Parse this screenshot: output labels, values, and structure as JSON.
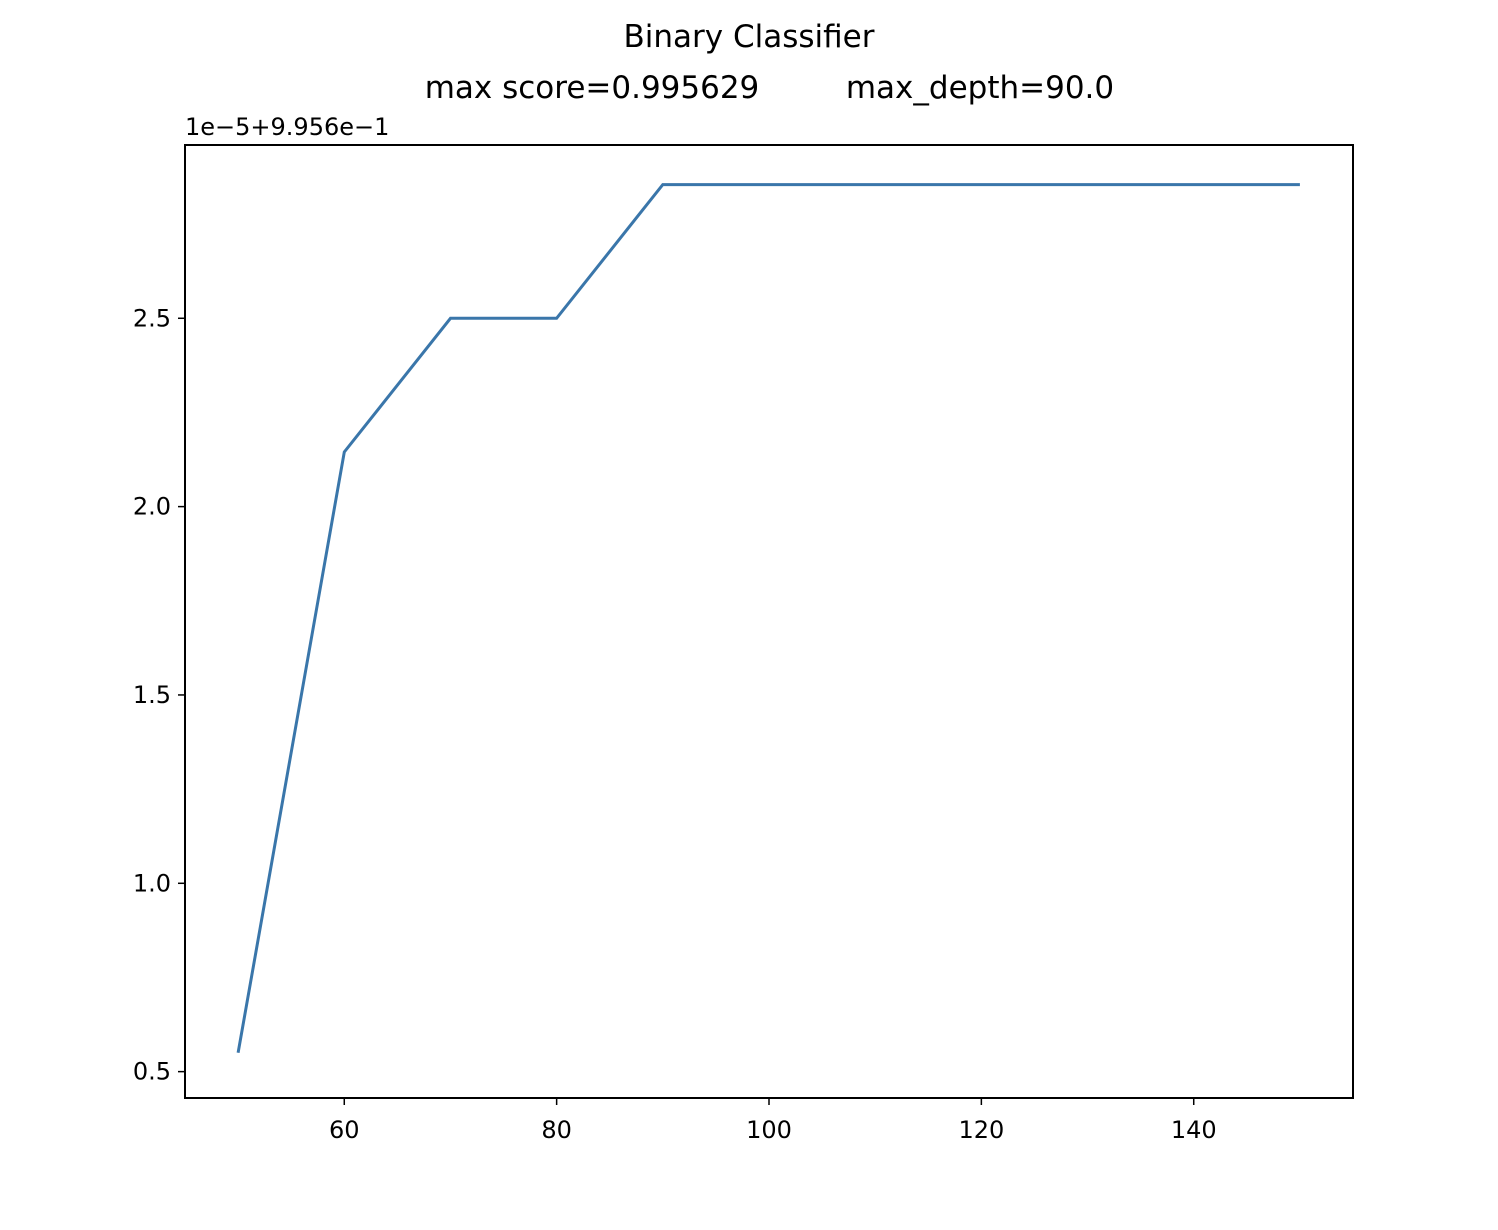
{
  "chart_data": {
    "type": "line",
    "title": "Binary Classifier",
    "subtitle_left": "max score=0.995629",
    "subtitle_right": "max_depth=90.0",
    "offset_label": "1e−5+9.956e−1",
    "xlabel": "",
    "ylabel": "",
    "xlim": [
      45,
      155
    ],
    "ylim": [
      0.43,
      2.96
    ],
    "x_ticks": [
      60,
      80,
      100,
      120,
      140
    ],
    "y_ticks": [
      0.5,
      1.0,
      1.5,
      2.0,
      2.5
    ],
    "x_tick_labels": [
      "60",
      "80",
      "100",
      "120",
      "140"
    ],
    "y_tick_labels": [
      "0.5",
      "1.0",
      "1.5",
      "2.0",
      "2.5"
    ],
    "grid": false,
    "series": [
      {
        "color": "#3a76aa",
        "x": [
          50,
          60,
          70,
          80,
          90,
          100,
          110,
          120,
          130,
          140,
          150
        ],
        "y": [
          0.55,
          2.145,
          2.5,
          2.5,
          2.855,
          2.855,
          2.855,
          2.855,
          2.855,
          2.855,
          2.855
        ]
      }
    ]
  }
}
